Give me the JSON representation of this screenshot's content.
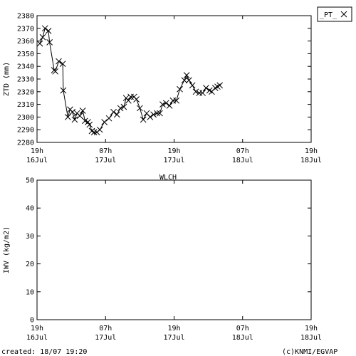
{
  "footer": {
    "created": "created: 18/07 19:20",
    "credit": "(c)KNMI/EGVAP"
  },
  "chart_data": [
    {
      "type": "line",
      "ylabel": "ZTD (mm)",
      "ylim": [
        2280,
        2380
      ],
      "yticks": [
        2280,
        2290,
        2300,
        2310,
        2320,
        2330,
        2340,
        2350,
        2360,
        2370,
        2380
      ],
      "x_ticks": [
        {
          "t": 0,
          "top": "19h",
          "bottom": "16Jul"
        },
        {
          "t": 12,
          "top": "07h",
          "bottom": "17Jul"
        },
        {
          "t": 24,
          "top": "19h",
          "bottom": "17Jul"
        },
        {
          "t": 36,
          "top": "07h",
          "bottom": "18Jul"
        },
        {
          "t": 48,
          "top": "19h",
          "bottom": "18Jul"
        }
      ],
      "xlim": [
        0,
        48
      ],
      "legend": {
        "position": "top-right"
      },
      "series": [
        {
          "name": "_PT_",
          "color": "#000000",
          "marker": "x",
          "points": [
            [
              0.5,
              2358
            ],
            [
              1.0,
              2363
            ],
            [
              1.4,
              2370
            ],
            [
              2.0,
              2368
            ],
            [
              2.2,
              2359
            ],
            [
              3.0,
              2337
            ],
            [
              3.2,
              2336
            ],
            [
              3.8,
              2344
            ],
            [
              4.5,
              2342
            ],
            [
              4.6,
              2321
            ],
            [
              5.4,
              2300
            ],
            [
              5.8,
              2306
            ],
            [
              6.2,
              2304
            ],
            [
              6.6,
              2298
            ],
            [
              7.0,
              2303
            ],
            [
              7.5,
              2301
            ],
            [
              8.0,
              2305
            ],
            [
              8.4,
              2297
            ],
            [
              8.9,
              2296
            ],
            [
              9.2,
              2294
            ],
            [
              9.6,
              2289
            ],
            [
              10.0,
              2288
            ],
            [
              10.5,
              2288
            ],
            [
              11.0,
              2290
            ],
            [
              11.8,
              2296
            ],
            [
              12.6,
              2299
            ],
            [
              13.4,
              2304
            ],
            [
              14.0,
              2302
            ],
            [
              14.6,
              2307
            ],
            [
              15.2,
              2308
            ],
            [
              15.6,
              2315
            ],
            [
              16.0,
              2313
            ],
            [
              16.4,
              2316
            ],
            [
              17.0,
              2316
            ],
            [
              17.4,
              2314
            ],
            [
              18.0,
              2307
            ],
            [
              18.6,
              2298
            ],
            [
              19.2,
              2303
            ],
            [
              19.8,
              2300
            ],
            [
              20.4,
              2302
            ],
            [
              21.0,
              2303
            ],
            [
              21.5,
              2303
            ],
            [
              22.0,
              2310
            ],
            [
              22.6,
              2311
            ],
            [
              23.2,
              2309
            ],
            [
              23.8,
              2313
            ],
            [
              24.4,
              2313
            ],
            [
              25.0,
              2322
            ],
            [
              25.8,
              2329
            ],
            [
              26.2,
              2333
            ],
            [
              26.6,
              2329
            ],
            [
              27.2,
              2325
            ],
            [
              27.8,
              2320
            ],
            [
              28.4,
              2319
            ],
            [
              29.0,
              2319
            ],
            [
              29.6,
              2323
            ],
            [
              30.2,
              2321
            ],
            [
              30.6,
              2320
            ],
            [
              31.2,
              2323
            ],
            [
              31.6,
              2324
            ],
            [
              32.0,
              2325
            ]
          ]
        }
      ]
    },
    {
      "type": "line",
      "title": "WLCH",
      "ylabel": "IWV (kg/m2)",
      "ylim": [
        0,
        50
      ],
      "yticks": [
        0,
        10,
        20,
        30,
        40,
        50
      ],
      "x_ticks": [
        {
          "t": 0,
          "top": "19h",
          "bottom": "16Jul"
        },
        {
          "t": 12,
          "top": "07h",
          "bottom": "17Jul"
        },
        {
          "t": 24,
          "top": "19h",
          "bottom": "17Jul"
        },
        {
          "t": 36,
          "top": "07h",
          "bottom": "18Jul"
        },
        {
          "t": 48,
          "top": "19h",
          "bottom": "18Jul"
        }
      ],
      "xlim": [
        0,
        48
      ],
      "series": []
    }
  ]
}
